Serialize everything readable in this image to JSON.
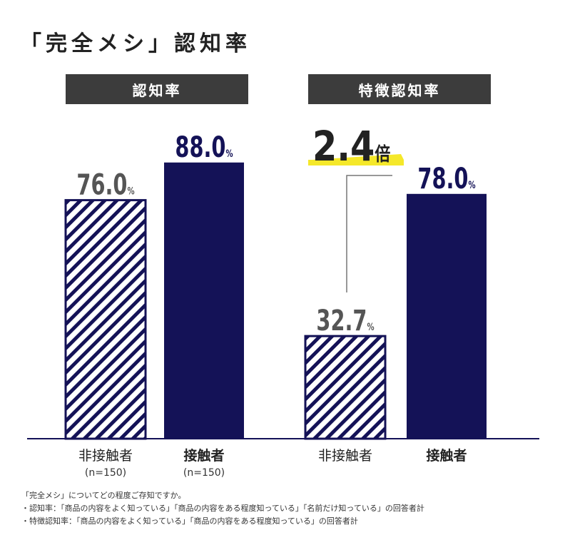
{
  "title": "「完全メシ」認知率",
  "panels": [
    {
      "label": "認知率"
    },
    {
      "label": "特徴認知率"
    }
  ],
  "chart_data": [
    {
      "type": "bar",
      "title": "認知率",
      "categories": [
        "非接触者",
        "接触者"
      ],
      "sample_sizes": [
        "(n=150)",
        "(n=150)"
      ],
      "values": [
        76.0,
        88.0
      ],
      "value_labels": [
        "76.0",
        "88.0"
      ],
      "unit": "%",
      "ylim": [
        0,
        100
      ],
      "series_styles": [
        "hatched",
        "navy"
      ]
    },
    {
      "type": "bar",
      "title": "特徴認知率",
      "categories": [
        "非接触者",
        "接触者"
      ],
      "values": [
        32.7,
        78.0
      ],
      "value_labels": [
        "32.7",
        "78.0"
      ],
      "unit": "%",
      "ylim": [
        0,
        100
      ],
      "series_styles": [
        "hatched",
        "navy"
      ],
      "annotation": {
        "number": "2.4",
        "suffix": "倍"
      }
    }
  ],
  "colors": {
    "navy": "#141257",
    "gray_value": "#555555",
    "highlight": "#f5e82a"
  },
  "footnotes": [
    "「完全メシ」についてどの程度ご存知ですか。",
    "・認知率：「商品の内容をよく知っている」「商品の内容をある程度知っている」「名前だけ知っている」の回答者計",
    "・特徴認知率：「商品の内容をよく知っている」「商品の内容をある程度知っている」の回答者計"
  ]
}
